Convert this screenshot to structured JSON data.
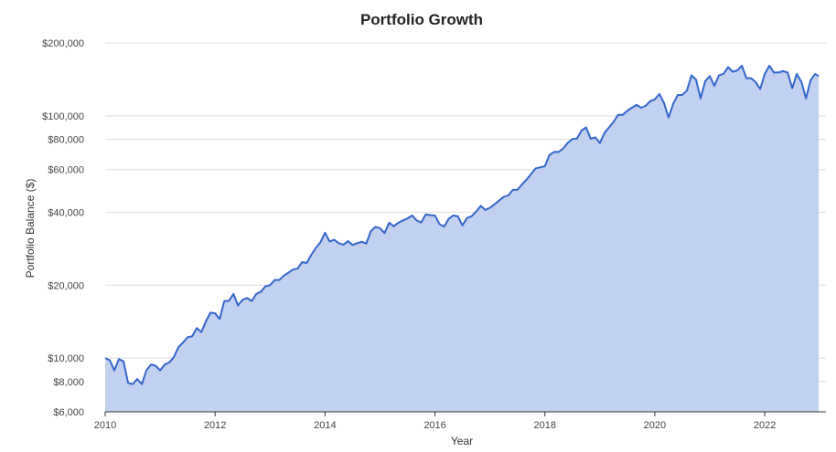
{
  "chart_data": {
    "type": "area",
    "title": "Portfolio Growth",
    "xlabel": "Year",
    "ylabel": "Portfolio Balance ($)",
    "yscale": "log",
    "ylim": [
      6000,
      200000
    ],
    "xlim": [
      2010.0,
      2022.98
    ],
    "x_ticks": [
      {
        "value": 2010,
        "label": "2010"
      },
      {
        "value": 2012,
        "label": "2012"
      },
      {
        "value": 2014,
        "label": "2014"
      },
      {
        "value": 2016,
        "label": "2016"
      },
      {
        "value": 2018,
        "label": "2018"
      },
      {
        "value": 2020,
        "label": "2020"
      },
      {
        "value": 2022,
        "label": "2022"
      }
    ],
    "y_ticks": [
      {
        "value": 6000,
        "label": "$6,000"
      },
      {
        "value": 8000,
        "label": "$8,000"
      },
      {
        "value": 10000,
        "label": "$10,000"
      },
      {
        "value": 20000,
        "label": "$20,000"
      },
      {
        "value": 40000,
        "label": "$40,000"
      },
      {
        "value": 60000,
        "label": "$60,000"
      },
      {
        "value": 80000,
        "label": "$80,000"
      },
      {
        "value": 100000,
        "label": "$100,000"
      },
      {
        "value": 200000,
        "label": "$200,000"
      }
    ],
    "grid": true,
    "colors": {
      "line": "#3366cc",
      "fill": "#c2d1ef"
    },
    "x": [
      2010.0,
      2010.083,
      2010.167,
      2010.25,
      2010.333,
      2010.417,
      2010.5,
      2010.583,
      2010.667,
      2010.75,
      2010.833,
      2010.917,
      2011.0,
      2011.083,
      2011.167,
      2011.25,
      2011.333,
      2011.417,
      2011.5,
      2011.583,
      2011.667,
      2011.75,
      2011.833,
      2011.917,
      2012.0,
      2012.083,
      2012.167,
      2012.25,
      2012.333,
      2012.417,
      2012.5,
      2012.583,
      2012.667,
      2012.75,
      2012.833,
      2012.917,
      2013.0,
      2013.083,
      2013.167,
      2013.25,
      2013.333,
      2013.417,
      2013.5,
      2013.583,
      2013.667,
      2013.75,
      2013.833,
      2013.917,
      2014.0,
      2014.083,
      2014.167,
      2014.25,
      2014.333,
      2014.417,
      2014.5,
      2014.583,
      2014.667,
      2014.75,
      2014.833,
      2014.917,
      2015.0,
      2015.083,
      2015.167,
      2015.25,
      2015.333,
      2015.417,
      2015.5,
      2015.583,
      2015.667,
      2015.75,
      2015.833,
      2015.917,
      2016.0,
      2016.083,
      2016.167,
      2016.25,
      2016.333,
      2016.417,
      2016.5,
      2016.583,
      2016.667,
      2016.75,
      2016.833,
      2016.917,
      2017.0,
      2017.083,
      2017.167,
      2017.25,
      2017.333,
      2017.417,
      2017.5,
      2017.583,
      2017.667,
      2017.75,
      2017.833,
      2017.917,
      2018.0,
      2018.083,
      2018.167,
      2018.25,
      2018.333,
      2018.417,
      2018.5,
      2018.583,
      2018.667,
      2018.75,
      2018.833,
      2018.917,
      2019.0,
      2019.083,
      2019.167,
      2019.25,
      2019.333,
      2019.417,
      2019.5,
      2019.583,
      2019.667,
      2019.75,
      2019.833,
      2019.917,
      2020.0,
      2020.083,
      2020.167,
      2020.25,
      2020.333,
      2020.417,
      2020.5,
      2020.583,
      2020.667,
      2020.75,
      2020.833,
      2020.917,
      2021.0,
      2021.083,
      2021.167,
      2021.25,
      2021.333,
      2021.417,
      2021.5,
      2021.583,
      2021.667,
      2021.75,
      2021.833,
      2021.917,
      2022.0,
      2022.083,
      2022.167,
      2022.25,
      2022.333,
      2022.417,
      2022.5,
      2022.583,
      2022.667,
      2022.75,
      2022.833,
      2022.917,
      2022.98
    ],
    "values": [
      10000,
      9800,
      8900,
      9900,
      9700,
      7900,
      7800,
      8200,
      7800,
      8900,
      9400,
      9300,
      8900,
      9400,
      9600,
      10100,
      11100,
      11600,
      12200,
      12300,
      13300,
      12800,
      14200,
      15400,
      15300,
      14500,
      17200,
      17200,
      18400,
      16500,
      17400,
      17700,
      17200,
      18400,
      18800,
      19800,
      20000,
      21000,
      21000,
      21900,
      22500,
      23200,
      23400,
      24900,
      24700,
      26700,
      28500,
      30100,
      32900,
      30300,
      30800,
      29800,
      29400,
      30400,
      29300,
      29800,
      30200,
      29700,
      33400,
      34800,
      34400,
      32800,
      36200,
      35000,
      36200,
      37000,
      37700,
      38800,
      37000,
      36300,
      39200,
      38900,
      38800,
      35700,
      34900,
      37600,
      38800,
      38500,
      35300,
      37900,
      38500,
      40300,
      42500,
      40900,
      41700,
      43100,
      44700,
      46300,
      46900,
      49500,
      49500,
      52100,
      54600,
      57600,
      60700,
      61300,
      62000,
      68900,
      71000,
      71000,
      73300,
      77400,
      80200,
      80600,
      87000,
      89600,
      80400,
      81500,
      77200,
      84900,
      89600,
      94500,
      101000,
      101000,
      105000,
      108000,
      111000,
      108000,
      110000,
      115000,
      117000,
      123000,
      113000,
      98500,
      112000,
      122000,
      122000,
      127000,
      147000,
      141000,
      118000,
      139000,
      146000,
      133000,
      147000,
      149000,
      159000,
      152000,
      154000,
      161000,
      143000,
      143000,
      138000,
      129000,
      149000,
      161000,
      151000,
      151000,
      153000,
      151000,
      130000,
      149000,
      138000,
      118000,
      140000,
      149000,
      146000
    ]
  }
}
